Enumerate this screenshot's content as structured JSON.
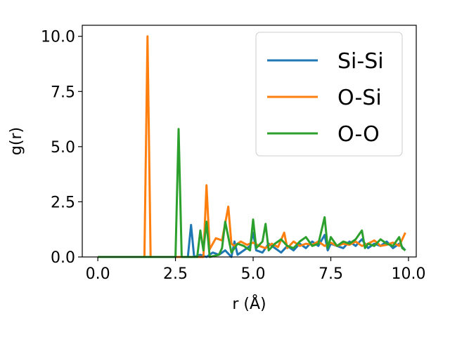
{
  "chart_data": {
    "type": "line",
    "xlabel": "r (Å)",
    "ylabel": "g(r)",
    "xlim": [
      -0.5,
      10.25
    ],
    "ylim": [
      0,
      10.5
    ],
    "xticks": [
      0.0,
      2.5,
      5.0,
      7.5,
      10.0
    ],
    "yticks": [
      0.0,
      2.5,
      5.0,
      7.5,
      10.0
    ],
    "xtick_labels": [
      "0.0",
      "2.5",
      "5.0",
      "7.5",
      "10.0"
    ],
    "ytick_labels": [
      "0.0",
      "2.5",
      "5.0",
      "7.5",
      "10.0"
    ],
    "grid": false,
    "legend_position": "top-right",
    "series": [
      {
        "name": "Si-Si",
        "color": "#1f77b4",
        "x": [
          0,
          2.9,
          3.0,
          3.1,
          3.3,
          3.5,
          3.7,
          3.9,
          4.1,
          4.3,
          4.4,
          4.5,
          4.7,
          4.9,
          5.0,
          5.1,
          5.3,
          5.5,
          5.7,
          5.9,
          6.1,
          6.3,
          6.5,
          6.7,
          6.9,
          7.1,
          7.3,
          7.4,
          7.5,
          7.7,
          7.9,
          8.1,
          8.3,
          8.5,
          8.7,
          8.9,
          9.1,
          9.3,
          9.5,
          9.7,
          9.9
        ],
        "y": [
          0,
          0,
          1.45,
          0.0,
          0.1,
          0.0,
          0.2,
          0.1,
          0.3,
          0.0,
          0.7,
          0.1,
          0.3,
          0.5,
          1.1,
          0.3,
          0.2,
          0.6,
          0.4,
          0.2,
          0.5,
          0.3,
          0.6,
          0.4,
          0.7,
          0.5,
          1.0,
          0.3,
          0.6,
          0.5,
          0.4,
          0.7,
          0.5,
          0.8,
          0.4,
          0.6,
          0.5,
          0.7,
          0.4,
          0.6,
          0.3
        ]
      },
      {
        "name": "O-Si",
        "color": "#ff7f0e",
        "x": [
          0,
          1.5,
          1.6,
          1.7,
          3.4,
          3.5,
          3.6,
          3.8,
          4.0,
          4.2,
          4.3,
          4.4,
          4.6,
          4.8,
          5.0,
          5.2,
          5.4,
          5.6,
          5.8,
          6.0,
          6.1,
          6.3,
          6.5,
          6.7,
          6.9,
          7.1,
          7.3,
          7.5,
          7.7,
          7.9,
          8.1,
          8.3,
          8.5,
          8.7,
          8.9,
          9.1,
          9.3,
          9.5,
          9.7,
          9.9
        ],
        "y": [
          0,
          0,
          10.0,
          0,
          0,
          3.25,
          0.35,
          0.85,
          0.75,
          2.28,
          0.6,
          0.5,
          0.7,
          0.55,
          0.65,
          0.5,
          0.4,
          0.6,
          0.45,
          1.1,
          0.4,
          0.7,
          0.5,
          0.6,
          0.55,
          0.7,
          0.5,
          0.65,
          0.5,
          0.6,
          0.55,
          0.7,
          0.5,
          0.6,
          0.75,
          0.5,
          0.55,
          0.65,
          0.5,
          1.1
        ]
      },
      {
        "name": "O-O",
        "color": "#2ca02c",
        "x": [
          0,
          2.5,
          2.6,
          2.7,
          3.2,
          3.3,
          3.4,
          3.5,
          3.6,
          3.9,
          4.0,
          4.1,
          4.3,
          4.5,
          4.7,
          4.9,
          5.0,
          5.1,
          5.3,
          5.4,
          5.5,
          5.7,
          5.9,
          6.1,
          6.3,
          6.5,
          6.7,
          6.9,
          7.1,
          7.3,
          7.4,
          7.5,
          7.7,
          7.9,
          8.1,
          8.3,
          8.5,
          8.6,
          8.7,
          8.9,
          9.1,
          9.3,
          9.5,
          9.7,
          9.8,
          9.9
        ],
        "y": [
          0,
          0,
          5.8,
          0,
          0,
          1.2,
          0.3,
          1.6,
          0.0,
          0.1,
          0.4,
          1.6,
          0.2,
          0.6,
          0.5,
          0.3,
          1.7,
          0.4,
          0.7,
          1.5,
          0.3,
          0.6,
          0.8,
          0.5,
          0.4,
          0.7,
          0.9,
          0.5,
          0.6,
          1.8,
          0.4,
          0.9,
          0.5,
          0.7,
          0.6,
          0.8,
          1.2,
          0.4,
          0.6,
          0.5,
          0.8,
          0.6,
          0.5,
          0.9,
          0.4,
          0.3
        ]
      }
    ]
  }
}
